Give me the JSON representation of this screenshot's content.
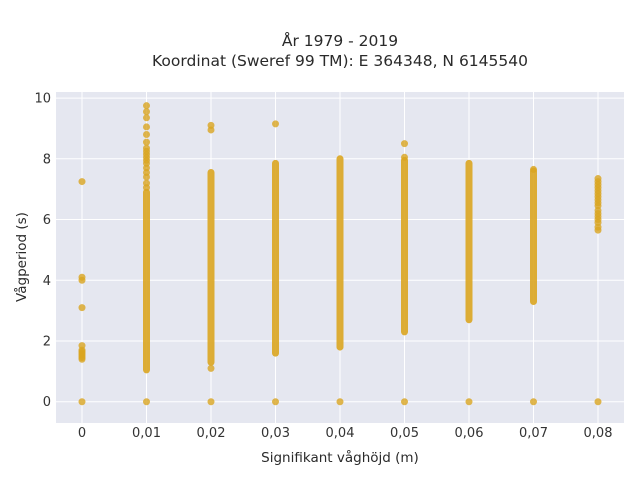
{
  "chart_data": {
    "type": "scatter",
    "title": "År 1979 - 2019",
    "subtitle": "Koordinat (Sweref 99 TM): E 364348, N 6145540",
    "xlabel": "Signifikant våghöjd (m)",
    "ylabel": "Vågperiod (s)",
    "categories": [
      "0",
      "0,01",
      "0,02",
      "0,03",
      "0,04",
      "0,05",
      "0,06",
      "0,07",
      "0,08"
    ],
    "y_ticks": [
      "0",
      "2",
      "4",
      "6",
      "8",
      "10"
    ],
    "ylim": [
      -0.7,
      10.2
    ],
    "grid": true,
    "legend": "none",
    "colors": {
      "marker": "#DAA520",
      "plot_bg": "#E5E7F0",
      "grid": "#ffffff"
    },
    "series": [
      {
        "x": 0,
        "points": [
          0,
          1.4,
          1.45,
          1.5,
          1.55,
          1.6,
          1.65,
          1.7,
          1.85,
          3.1,
          4.0,
          4.1,
          7.25
        ]
      },
      {
        "x": 0.01,
        "range": [
          1.05,
          6.9
        ],
        "points": [
          0,
          7.05,
          7.2,
          7.4,
          7.55,
          7.7,
          7.85,
          7.95,
          8.05,
          8.15,
          8.25,
          8.35,
          8.55,
          8.8,
          9.05,
          9.35,
          9.55,
          9.75
        ]
      },
      {
        "x": 0.02,
        "range": [
          1.3,
          7.55
        ],
        "points": [
          0,
          1.1,
          8.95,
          9.1
        ]
      },
      {
        "x": 0.03,
        "range": [
          1.6,
          7.85
        ],
        "points": [
          0,
          9.15
        ]
      },
      {
        "x": 0.04,
        "range": [
          1.8,
          8.0
        ],
        "points": [
          0
        ]
      },
      {
        "x": 0.05,
        "range": [
          2.3,
          7.95
        ],
        "points": [
          0,
          8.05,
          8.5
        ]
      },
      {
        "x": 0.06,
        "range": [
          2.7,
          7.85
        ],
        "points": [
          0
        ]
      },
      {
        "x": 0.07,
        "range": [
          3.3,
          7.6
        ],
        "points": [
          0,
          7.65
        ]
      },
      {
        "x": 0.08,
        "points": [
          0,
          5.65,
          5.75,
          5.9,
          6.0,
          6.1,
          6.2,
          6.3,
          6.45,
          6.55,
          6.65,
          6.75,
          6.85,
          6.95,
          7.05,
          7.15,
          7.25,
          7.35
        ]
      }
    ]
  }
}
